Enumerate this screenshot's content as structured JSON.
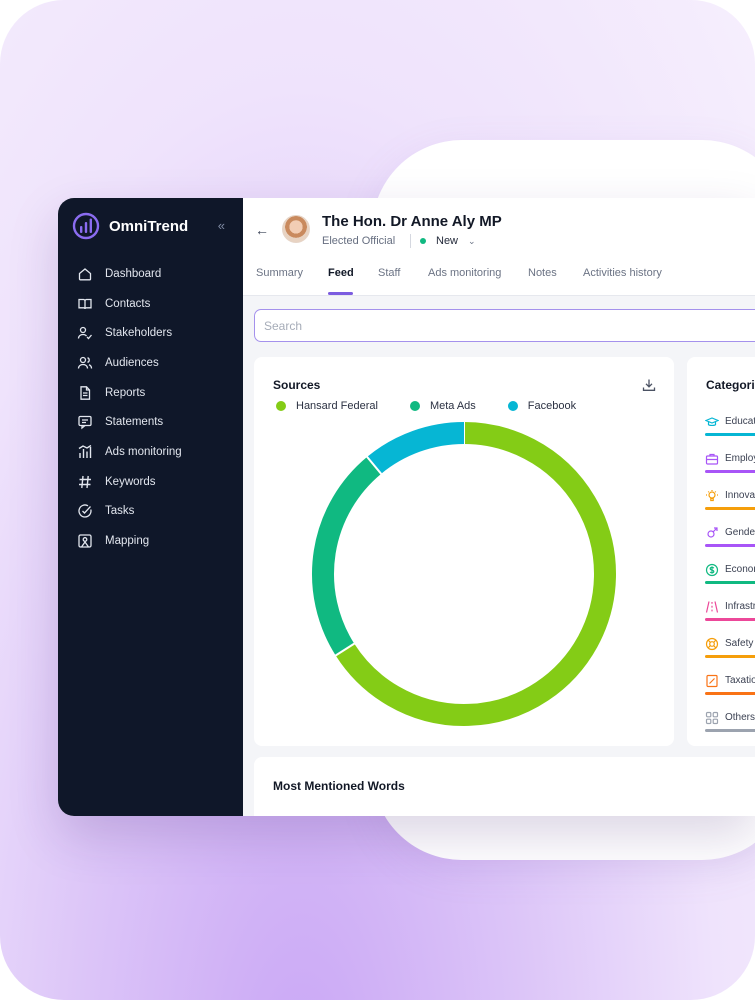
{
  "brand": {
    "name": "OmniTrend",
    "accent": "#7c5ce0"
  },
  "sidebar": {
    "collapse_label": "«",
    "items": [
      {
        "label": "Dashboard",
        "icon": "home-icon"
      },
      {
        "label": "Contacts",
        "icon": "book-icon"
      },
      {
        "label": "Stakeholders",
        "icon": "user-check-icon"
      },
      {
        "label": "Audiences",
        "icon": "users-icon"
      },
      {
        "label": "Reports",
        "icon": "file-icon"
      },
      {
        "label": "Statements",
        "icon": "message-icon"
      },
      {
        "label": "Ads monitoring",
        "icon": "bar-chart-icon"
      },
      {
        "label": "Keywords",
        "icon": "hash-icon"
      },
      {
        "label": "Tasks",
        "icon": "check-circle-icon"
      },
      {
        "label": "Mapping",
        "icon": "map-icon"
      }
    ]
  },
  "header": {
    "back_label": "←",
    "name": "The Hon. Dr Anne Aly MP",
    "role": "Elected Official",
    "status": "New",
    "status_color": "#10b981",
    "status_chevron": "⌄"
  },
  "tabs": [
    {
      "label": "Summary"
    },
    {
      "label": "Feed",
      "active": true
    },
    {
      "label": "Staff"
    },
    {
      "label": "Ads monitoring"
    },
    {
      "label": "Notes"
    },
    {
      "label": "Activities history"
    }
  ],
  "search": {
    "placeholder": "Search"
  },
  "sources": {
    "title": "Sources",
    "download_icon": "download-icon"
  },
  "chart_data": {
    "type": "pie",
    "title": "Sources",
    "categories": [
      "Hansard Federal",
      "Meta Ads",
      "Facebook"
    ],
    "values": [
      66,
      23,
      11
    ],
    "colors": [
      "#84cc16",
      "#10b981",
      "#06b6d4"
    ],
    "legend": "top-left"
  },
  "categories": {
    "title": "Categori",
    "items": [
      {
        "label": "Educati",
        "icon": "graduation-cap-icon",
        "color": "#06b6d4"
      },
      {
        "label": "Employ",
        "icon": "briefcase-icon",
        "color": "#a855f7"
      },
      {
        "label": "Innovat",
        "icon": "lightbulb-icon",
        "color": "#f59e0b"
      },
      {
        "label": "Gender",
        "icon": "gender-icon",
        "color": "#a855f7"
      },
      {
        "label": "Econom",
        "icon": "money-icon",
        "color": "#10b981"
      },
      {
        "label": "Infrastr",
        "icon": "road-icon",
        "color": "#ec4899"
      },
      {
        "label": "Safety",
        "icon": "lifebuoy-icon",
        "color": "#f59e0b"
      },
      {
        "label": "Taxatio",
        "icon": "receipt-icon",
        "color": "#f97316"
      },
      {
        "label": "Others",
        "icon": "grid-icon",
        "color": "#9ca3af"
      }
    ]
  },
  "words": {
    "title": "Most Mentioned Words"
  }
}
